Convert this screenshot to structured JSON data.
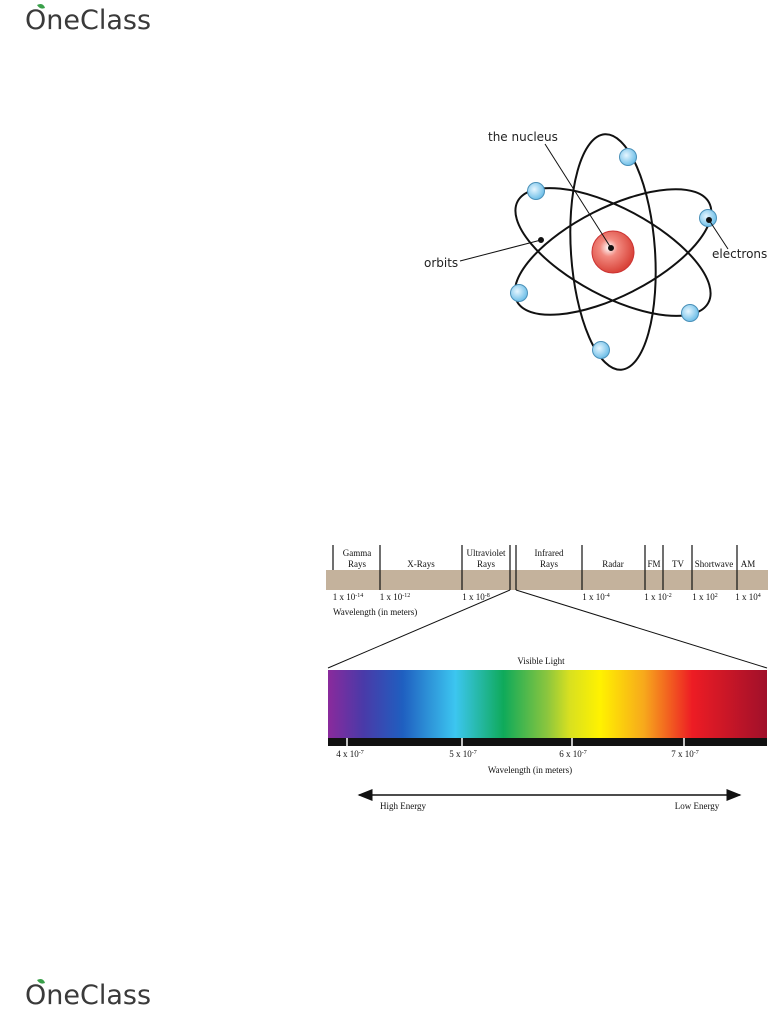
{
  "header": {
    "logo": "OneClass"
  },
  "atom": {
    "nucleus_label": "the nucleus",
    "orbits_label": "orbits",
    "electrons_label": "electrons"
  },
  "spectrum": {
    "bands": [
      "Gamma",
      "Rays",
      "X-Rays",
      "Ultraviolet",
      "Rays",
      "Infrared",
      "Rays",
      "Radar",
      "FM",
      "TV",
      "Shortwave",
      "AM"
    ],
    "ticks": [
      {
        "base": "1 x 10",
        "exp": "-14"
      },
      {
        "base": "1 x 10",
        "exp": "-12"
      },
      {
        "base": "1 x 10",
        "exp": "-8"
      },
      {
        "base": "1 x 10",
        "exp": "-4"
      },
      {
        "base": "1 x 10",
        "exp": "-2"
      },
      {
        "base": "1 x 10",
        "exp": "2"
      },
      {
        "base": "1 x 10",
        "exp": "4"
      }
    ],
    "axis_label": "Wavelength (in meters)",
    "visible_title": "Visible Light",
    "visible_ticks": [
      {
        "base": "4 x 10",
        "exp": "-7"
      },
      {
        "base": "5 x 10",
        "exp": "-7"
      },
      {
        "base": "6 x 10",
        "exp": "-7"
      },
      {
        "base": "7 x 10",
        "exp": "-7"
      }
    ],
    "visible_axis_label": "Wavelength (in meters)",
    "high": "High Energy",
    "low": "Low Energy"
  },
  "footer": {
    "logo": "OneClass"
  }
}
